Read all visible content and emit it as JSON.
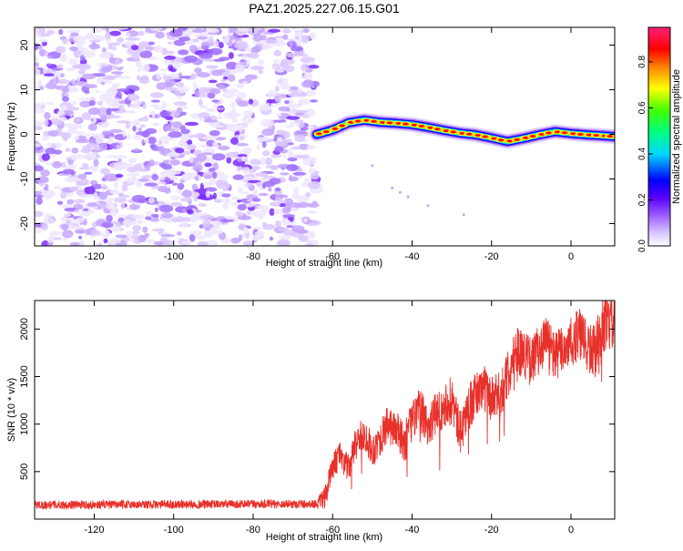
{
  "title": "PAZ1.2025.227.06.15.G01",
  "chart_data": [
    {
      "type": "heatmap",
      "panel": "spectrogram",
      "xlabel": "Height of straight line (km)",
      "ylabel": "Frequency (Hz)",
      "xlim": [
        -135,
        11
      ],
      "ylim": [
        -25,
        24
      ],
      "xticks": [
        -120,
        -100,
        -80,
        -60,
        -40,
        -20,
        0
      ],
      "yticks": [
        -20,
        -10,
        0,
        10,
        20
      ],
      "noise_region_x": [
        -135,
        -64
      ],
      "signal_ridge": {
        "x": [
          -64,
          -60,
          -56,
          -52,
          -48,
          -44,
          -40,
          -36,
          -32,
          -28,
          -24,
          -20,
          -16,
          -12,
          -8,
          -4,
          0,
          4,
          8,
          11
        ],
        "y": [
          0,
          1,
          2.6,
          3.2,
          2.7,
          2.5,
          2.2,
          1.6,
          0.9,
          0.3,
          -0.1,
          -0.8,
          -1.6,
          -0.9,
          -0.1,
          0.6,
          0.2,
          -0.1,
          -0.3,
          -0.5
        ]
      },
      "colorbar": {
        "label": "Normalized spectral amplitude",
        "ticks": [
          "0.0",
          "0.2",
          "0.4",
          "0.6",
          "0.8"
        ],
        "range": [
          0,
          0.95
        ],
        "colors": [
          "#ffffff",
          "#b48cff",
          "#6a00ff",
          "#0000ff",
          "#00e5ff",
          "#00ff40",
          "#ffff00",
          "#ff6a00",
          "#ff0000",
          "#ff1f7a"
        ]
      },
      "grid": false
    },
    {
      "type": "line",
      "panel": "snr",
      "xlabel": "Height of straight line (km)",
      "ylabel": "SNR (10 * v/v)",
      "xlim": [
        -135,
        11
      ],
      "ylim": [
        0,
        2300
      ],
      "xticks": [
        -120,
        -100,
        -80,
        -60,
        -40,
        -20,
        0
      ],
      "yticks": [
        500,
        1000,
        1500,
        2000
      ],
      "series": [
        {
          "color": "#e8312b",
          "x": [
            -135,
            -64,
            -62,
            -60,
            -58,
            -56,
            -54,
            -52,
            -50,
            -48,
            -46,
            -44,
            -42,
            -40,
            -38,
            -36,
            -34,
            -32,
            -30,
            -28,
            -26,
            -24,
            -22,
            -20,
            -18,
            -16,
            -14,
            -12,
            -10,
            -8,
            -6,
            -4,
            -2,
            0,
            2,
            4,
            6,
            8,
            10,
            11
          ],
          "values": [
            150,
            160,
            220,
            550,
            700,
            520,
            830,
            900,
            720,
            850,
            1000,
            950,
            780,
            1050,
            1150,
            980,
            1100,
            1200,
            1280,
            900,
            1150,
            1300,
            1400,
            1250,
            1300,
            1500,
            1800,
            1750,
            1650,
            1800,
            1900,
            1700,
            1800,
            1850,
            1950,
            1800,
            1750,
            2050,
            2050,
            2100
          ],
          "noise_amplitude": {
            "x": [
              -135,
              -64,
              -62,
              -40,
              -20,
              0,
              11
            ],
            "values": [
              90,
              90,
              250,
              450,
              500,
              550,
              600
            ]
          }
        }
      ],
      "grid": false
    }
  ]
}
